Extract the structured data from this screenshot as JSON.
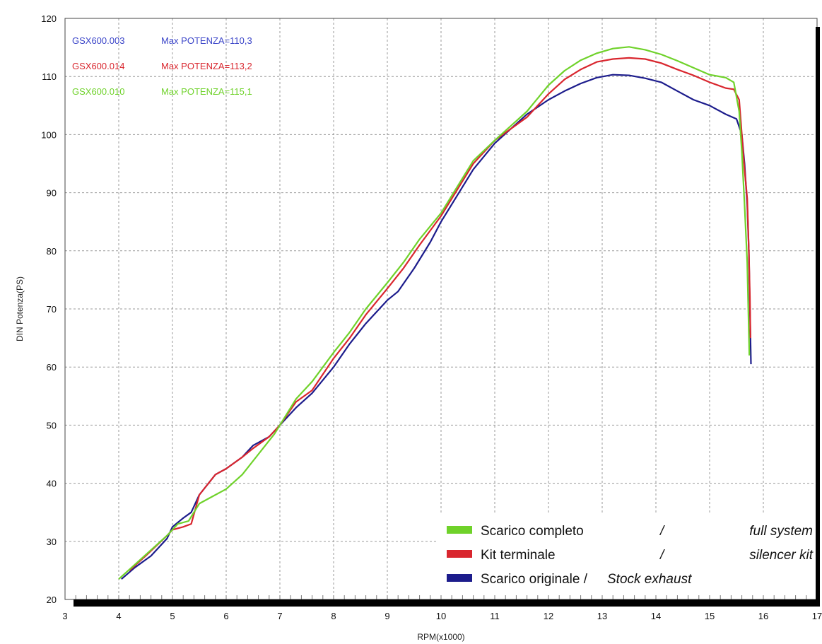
{
  "chart_data": {
    "type": "line",
    "title": "",
    "xlabel": "RPM(x1000)",
    "ylabel": "DIN Potenza(PS)",
    "xlim": [
      3,
      17
    ],
    "ylim": [
      20,
      120
    ],
    "xticks": [
      "3",
      "4",
      "5",
      "6",
      "7",
      "8",
      "9",
      "10",
      "11",
      "12",
      "13",
      "14",
      "15",
      "16",
      "17"
    ],
    "yticks": [
      "20",
      "30",
      "40",
      "50",
      "60",
      "70",
      "80",
      "90",
      "100",
      "110",
      "120"
    ],
    "grid": true,
    "legend_position": "bottom-right",
    "colors": {
      "full": "#6fd22a",
      "kit": "#d9262e",
      "stock": "#1c1c8c"
    },
    "annotations": [
      {
        "code": "GSX600.003",
        "text": "Max POTENZA=110,3",
        "color": "#3a44c8"
      },
      {
        "code": "GSX600.014",
        "text": "Max POTENZA=113,2",
        "color": "#d9262e"
      },
      {
        "code": "GSX600.010",
        "text": "Max POTENZA=115,1",
        "color": "#6fd22a"
      }
    ],
    "legend": [
      {
        "label": "Scarico completo",
        "sep": "/",
        "label_en": "full system",
        "color": "#6fd22a"
      },
      {
        "label": "Kit terminale",
        "sep": "/",
        "label_en": "silencer kit",
        "color": "#d9262e"
      },
      {
        "label": "Scarico originale /",
        "sep": "",
        "label_en": "Stock exhaust",
        "color": "#1c1c8c"
      }
    ],
    "series": [
      {
        "key": "stock",
        "points": [
          [
            4.05,
            23.5
          ],
          [
            4.3,
            25.5
          ],
          [
            4.6,
            27.5
          ],
          [
            4.9,
            30.5
          ],
          [
            5.0,
            32.5
          ],
          [
            5.2,
            34
          ],
          [
            5.35,
            35
          ],
          [
            5.5,
            38
          ],
          [
            5.8,
            41.5
          ],
          [
            6.0,
            42.5
          ],
          [
            6.3,
            44.5
          ],
          [
            6.5,
            46.5
          ],
          [
            6.8,
            48
          ],
          [
            7.0,
            50
          ],
          [
            7.3,
            53
          ],
          [
            7.6,
            55.5
          ],
          [
            8.0,
            60
          ],
          [
            8.3,
            64
          ],
          [
            8.6,
            67.5
          ],
          [
            9.0,
            71.5
          ],
          [
            9.2,
            73
          ],
          [
            9.5,
            77
          ],
          [
            9.8,
            81.5
          ],
          [
            10.0,
            85
          ],
          [
            10.3,
            89.5
          ],
          [
            10.6,
            94
          ],
          [
            11.0,
            98.5
          ],
          [
            11.3,
            101
          ],
          [
            11.6,
            103.5
          ],
          [
            12.0,
            106
          ],
          [
            12.3,
            107.5
          ],
          [
            12.6,
            108.8
          ],
          [
            12.9,
            109.8
          ],
          [
            13.2,
            110.3
          ],
          [
            13.5,
            110.2
          ],
          [
            13.8,
            109.7
          ],
          [
            14.1,
            109
          ],
          [
            14.4,
            107.5
          ],
          [
            14.7,
            106
          ],
          [
            15.0,
            105
          ],
          [
            15.3,
            103.5
          ],
          [
            15.5,
            102.7
          ],
          [
            15.6,
            100
          ],
          [
            15.65,
            95
          ],
          [
            15.7,
            88
          ],
          [
            15.73,
            80
          ],
          [
            15.75,
            70
          ],
          [
            15.77,
            60.5
          ]
        ]
      },
      {
        "key": "kit",
        "points": [
          [
            4.2,
            25
          ],
          [
            4.5,
            27.5
          ],
          [
            4.9,
            31
          ],
          [
            5.0,
            32
          ],
          [
            5.2,
            32.5
          ],
          [
            5.35,
            33
          ],
          [
            5.5,
            38
          ],
          [
            5.8,
            41.5
          ],
          [
            6.0,
            42.5
          ],
          [
            6.3,
            44.5
          ],
          [
            6.5,
            46
          ],
          [
            6.8,
            48
          ],
          [
            7.0,
            50
          ],
          [
            7.3,
            54
          ],
          [
            7.6,
            56
          ],
          [
            8.0,
            61.5
          ],
          [
            8.3,
            65
          ],
          [
            8.6,
            69
          ],
          [
            9.0,
            73.5
          ],
          [
            9.3,
            77
          ],
          [
            9.6,
            81
          ],
          [
            10.0,
            86
          ],
          [
            10.3,
            90.5
          ],
          [
            10.6,
            95
          ],
          [
            11.0,
            99
          ],
          [
            11.3,
            101
          ],
          [
            11.6,
            103
          ],
          [
            12.0,
            107
          ],
          [
            12.3,
            109.5
          ],
          [
            12.6,
            111.2
          ],
          [
            12.9,
            112.5
          ],
          [
            13.2,
            113
          ],
          [
            13.5,
            113.2
          ],
          [
            13.8,
            113
          ],
          [
            14.1,
            112.3
          ],
          [
            14.4,
            111.2
          ],
          [
            14.7,
            110.2
          ],
          [
            15.0,
            109
          ],
          [
            15.3,
            108
          ],
          [
            15.45,
            107.8
          ],
          [
            15.55,
            106
          ],
          [
            15.6,
            100
          ],
          [
            15.65,
            94
          ],
          [
            15.7,
            89
          ],
          [
            15.73,
            80
          ],
          [
            15.75,
            72
          ],
          [
            15.76,
            65
          ]
        ]
      },
      {
        "key": "full",
        "points": [
          [
            4.0,
            23.5
          ],
          [
            4.3,
            26
          ],
          [
            4.6,
            28.5
          ],
          [
            4.9,
            31
          ],
          [
            5.1,
            33
          ],
          [
            5.3,
            33.5
          ],
          [
            5.5,
            36.5
          ],
          [
            5.7,
            37.5
          ],
          [
            6.0,
            39
          ],
          [
            6.3,
            41.5
          ],
          [
            6.6,
            45
          ],
          [
            6.9,
            48.5
          ],
          [
            7.0,
            50
          ],
          [
            7.3,
            54.5
          ],
          [
            7.6,
            57.5
          ],
          [
            8.0,
            62.5
          ],
          [
            8.3,
            66
          ],
          [
            8.6,
            70
          ],
          [
            9.0,
            74.5
          ],
          [
            9.3,
            78
          ],
          [
            9.6,
            82
          ],
          [
            10.0,
            86.5
          ],
          [
            10.3,
            91
          ],
          [
            10.6,
            95.5
          ],
          [
            11.0,
            99
          ],
          [
            11.3,
            101.5
          ],
          [
            11.6,
            104
          ],
          [
            12.0,
            108.5
          ],
          [
            12.3,
            111
          ],
          [
            12.6,
            112.8
          ],
          [
            12.9,
            114
          ],
          [
            13.2,
            114.8
          ],
          [
            13.5,
            115.1
          ],
          [
            13.8,
            114.6
          ],
          [
            14.1,
            113.8
          ],
          [
            14.4,
            112.7
          ],
          [
            14.7,
            111.5
          ],
          [
            15.0,
            110.3
          ],
          [
            15.3,
            109.8
          ],
          [
            15.45,
            109
          ],
          [
            15.55,
            104
          ],
          [
            15.6,
            97
          ],
          [
            15.65,
            88
          ],
          [
            15.7,
            78
          ],
          [
            15.72,
            70
          ],
          [
            15.74,
            62
          ]
        ]
      }
    ]
  }
}
